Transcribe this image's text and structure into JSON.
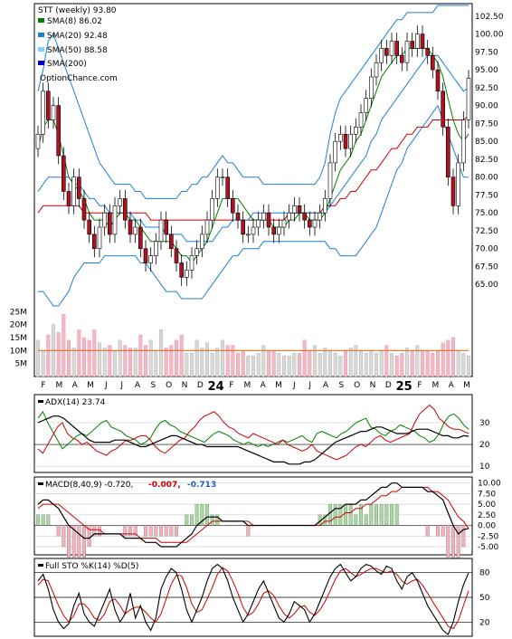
{
  "chart_data": {
    "type": "line",
    "title": "STT (weekly) 93.80",
    "legend": [
      {
        "label": "SMA(8) 86.02",
        "color": "#008000"
      },
      {
        "label": "SMA(20) 92.48",
        "color": "#1e7fd6"
      },
      {
        "label": "SMA(50) 88.58",
        "color": "#87cefa"
      },
      {
        "label": "SMA(200)",
        "color": "#0000cc"
      }
    ],
    "watermark": "OptionChance.com",
    "x_tick_labels": [
      "F",
      "M",
      "A",
      "M",
      "J",
      "J",
      "A",
      "S",
      "O",
      "N",
      "D",
      "24",
      "F",
      "M",
      "A",
      "M",
      "J",
      "J",
      "A",
      "S",
      "O",
      "N",
      "D",
      "25",
      "F",
      "M",
      "A",
      "M"
    ],
    "price_axis": {
      "ticks": [
        "102.50",
        "100.00",
        "97.50",
        "95.00",
        "92.50",
        "90.00",
        "87.50",
        "85.00",
        "82.50",
        "80.00",
        "77.50",
        "75.00",
        "72.50",
        "70.00",
        "67.50",
        "65.00"
      ],
      "ylim": [
        62.5,
        104
      ],
      "close": [
        86,
        92,
        88,
        90,
        83,
        78,
        76,
        80,
        77,
        74,
        72,
        70,
        73,
        75,
        72,
        76,
        77,
        74,
        72,
        73,
        70,
        68,
        69,
        71,
        74,
        72,
        70,
        68,
        66,
        67,
        69,
        70,
        72,
        74,
        77,
        80,
        80,
        77,
        75,
        74,
        72,
        72,
        73,
        74,
        75,
        73,
        72,
        73,
        74,
        75,
        76,
        75,
        74,
        73,
        74,
        75,
        77,
        82,
        85,
        86,
        84,
        86,
        87,
        89,
        91,
        94,
        96,
        98,
        97,
        99,
        97,
        96,
        99,
        98,
        100,
        98,
        97,
        95,
        92,
        87,
        80,
        76,
        82,
        88,
        93.8
      ],
      "sma8": [
        84,
        87,
        88,
        88,
        86,
        83,
        80,
        79,
        78,
        77,
        75,
        74,
        74,
        74,
        73,
        74,
        75,
        75,
        74,
        74,
        73,
        72,
        71,
        71,
        71,
        71,
        71,
        70,
        69,
        69,
        68,
        69,
        70,
        71,
        73,
        75,
        77,
        77,
        77,
        77,
        76,
        75,
        74,
        74,
        74,
        74,
        73,
        73,
        73,
        74,
        74,
        75,
        75,
        74,
        74,
        74,
        75,
        77,
        79,
        81,
        82,
        83,
        85,
        86,
        88,
        90,
        92,
        94,
        95,
        96,
        97,
        97,
        98,
        98,
        98,
        98,
        98,
        97,
        96,
        94,
        91,
        88,
        86,
        85,
        86.02
      ],
      "sma20": [
        78,
        79,
        80,
        80,
        80,
        80,
        80,
        79,
        79,
        78,
        77,
        77,
        76,
        76,
        75,
        75,
        75,
        75,
        75,
        74,
        74,
        73,
        73,
        73,
        73,
        72,
        72,
        72,
        72,
        71,
        71,
        71,
        71,
        71,
        71,
        72,
        73,
        73,
        74,
        74,
        74,
        74,
        75,
        75,
        75,
        75,
        75,
        75,
        75,
        75,
        75,
        75,
        75,
        75,
        75,
        75,
        75,
        76,
        77,
        78,
        79,
        80,
        81,
        82,
        83,
        85,
        86,
        88,
        89,
        90,
        91,
        92,
        93,
        94,
        95,
        96,
        97,
        97,
        97,
        96,
        95,
        94,
        93,
        92,
        92.48
      ],
      "sma50": [
        75,
        76,
        76,
        76,
        76,
        76,
        76,
        76,
        76,
        75,
        75,
        75,
        75,
        75,
        75,
        75,
        75,
        75,
        75,
        75,
        75,
        75,
        74,
        74,
        74,
        74,
        74,
        74,
        74,
        74,
        74,
        74,
        74,
        74,
        74,
        74,
        74,
        74,
        74,
        74,
        74,
        74,
        74,
        74,
        74,
        74,
        74,
        74,
        74,
        75,
        75,
        75,
        75,
        75,
        75,
        75,
        76,
        76,
        76,
        77,
        77,
        78,
        78,
        79,
        80,
        81,
        81,
        82,
        83,
        84,
        84,
        85,
        86,
        86,
        87,
        87,
        87,
        88,
        88,
        88,
        88,
        88,
        88,
        88,
        88.58
      ],
      "bb_upper": [
        92,
        95,
        99,
        100,
        98,
        96,
        94,
        92,
        90,
        88,
        86,
        84,
        82,
        81,
        80,
        79,
        79,
        79,
        79,
        78,
        78,
        77,
        77,
        77,
        77,
        77,
        77,
        77,
        78,
        78,
        79,
        79,
        80,
        80,
        81,
        82,
        83,
        82,
        82,
        81,
        80,
        80,
        80,
        80,
        79,
        79,
        79,
        79,
        79,
        79,
        79,
        79,
        79,
        79,
        79,
        80,
        82,
        86,
        89,
        91,
        92,
        93,
        94,
        95,
        96,
        97,
        98,
        99,
        100,
        101,
        102,
        102,
        103,
        103,
        103,
        103,
        103,
        103,
        104,
        104,
        104,
        104,
        104,
        104,
        104
      ],
      "bb_lower": [
        64,
        64,
        63,
        62,
        62,
        63,
        64,
        66,
        67,
        68,
        68,
        68,
        68,
        69,
        69,
        69,
        69,
        69,
        69,
        69,
        68,
        68,
        67,
        66,
        65,
        64,
        64,
        64,
        63,
        63,
        63,
        63,
        63,
        64,
        65,
        66,
        67,
        68,
        69,
        69,
        70,
        70,
        70,
        70,
        71,
        71,
        71,
        71,
        71,
        71,
        71,
        71,
        71,
        71,
        71,
        71,
        71,
        70,
        70,
        69,
        69,
        69,
        69,
        70,
        71,
        72,
        73,
        75,
        77,
        79,
        81,
        82,
        84,
        85,
        86,
        87,
        88,
        89,
        90,
        88,
        86,
        84,
        82,
        80,
        80
      ]
    },
    "volume_axis": {
      "ticks": [
        "25M",
        "20M",
        "15M",
        "10M",
        "5M"
      ],
      "ylim": [
        0,
        30
      ],
      "bars": [
        14,
        10,
        16,
        20,
        17,
        24,
        14,
        11,
        18,
        15,
        14,
        18,
        13,
        11,
        12,
        10,
        14,
        12,
        11,
        11,
        16,
        12,
        14,
        10,
        18,
        11,
        12,
        14,
        16,
        9,
        9,
        14,
        11,
        13,
        9,
        11,
        14,
        12,
        12,
        9,
        10,
        8,
        8,
        9,
        12,
        10,
        10,
        9,
        8,
        8,
        9,
        9,
        14,
        10,
        12,
        9,
        11,
        10,
        9,
        8,
        10,
        11,
        12,
        10,
        9,
        10,
        9,
        10,
        12,
        9,
        8,
        9,
        11,
        10,
        12,
        10,
        10,
        9,
        10,
        13,
        14,
        15,
        10,
        9,
        8
      ],
      "ma_value": 10
    },
    "adx_panel": {
      "label": "ADX(14) 23.74",
      "ticks": [
        "30",
        "20",
        "10"
      ],
      "ylim": [
        8,
        42
      ],
      "adx": [
        30,
        31,
        32,
        33,
        33,
        32,
        30,
        28,
        26,
        24,
        22,
        21,
        21,
        21,
        21,
        22,
        22,
        22,
        21,
        20,
        19,
        19,
        20,
        21,
        22,
        23,
        24,
        24,
        23,
        22,
        21,
        20,
        20,
        19,
        19,
        19,
        19,
        19,
        19,
        19,
        18,
        17,
        16,
        15,
        14,
        13,
        12,
        12,
        12,
        11,
        11,
        11,
        12,
        12,
        13,
        15,
        17,
        19,
        21,
        22,
        23,
        24,
        25,
        26,
        26,
        27,
        28,
        28,
        27,
        26,
        25,
        25,
        25,
        26,
        27,
        27,
        27,
        26,
        25,
        24,
        24,
        23,
        23,
        24,
        23.74
      ],
      "plus_di": [
        32,
        35,
        30,
        26,
        22,
        18,
        20,
        22,
        24,
        25,
        24,
        26,
        28,
        30,
        31,
        28,
        27,
        26,
        24,
        23,
        22,
        20,
        21,
        23,
        27,
        30,
        31,
        29,
        28,
        26,
        25,
        24,
        23,
        22,
        21,
        23,
        25,
        26,
        25,
        24,
        22,
        21,
        20,
        21,
        20,
        19,
        20,
        19,
        20,
        21,
        22,
        21,
        22,
        23,
        24,
        22,
        21,
        25,
        26,
        25,
        24,
        23,
        25,
        26,
        28,
        30,
        31,
        32,
        28,
        27,
        25,
        24,
        26,
        27,
        29,
        28,
        27,
        26,
        24,
        23,
        21,
        22,
        25,
        30,
        33,
        34,
        32,
        29,
        27
      ],
      "minus_di": [
        18,
        16,
        20,
        24,
        28,
        30,
        25,
        23,
        22,
        20,
        21,
        19,
        17,
        16,
        15,
        17,
        18,
        20,
        22,
        22,
        23,
        24,
        24,
        22,
        19,
        17,
        16,
        18,
        20,
        22,
        23,
        26,
        28,
        31,
        33,
        34,
        35,
        33,
        30,
        28,
        27,
        25,
        24,
        23,
        25,
        24,
        23,
        22,
        21,
        20,
        22,
        20,
        19,
        18,
        17,
        18,
        20,
        17,
        16,
        15,
        14,
        13,
        14,
        15,
        17,
        19,
        20,
        19,
        21,
        23,
        24,
        22,
        21,
        22,
        23,
        24,
        25,
        30,
        34,
        36,
        38,
        36,
        32,
        30,
        28,
        27,
        27,
        26,
        25
      ]
    },
    "macd_panel": {
      "label": "MACD(8,40,9) -0.720,",
      "value_1": "-0.007,",
      "value_2": "-0.713",
      "ticks": [
        "10.00",
        "7.50",
        "5.00",
        "2.50",
        "0.00",
        "-2.50",
        "-5.00"
      ],
      "ylim": [
        -6.5,
        11
      ],
      "macd": [
        5,
        6,
        6,
        5,
        4,
        2,
        0,
        -1,
        -2,
        -3,
        -3,
        -2,
        -2,
        -2,
        -2,
        -2,
        -2,
        -3,
        -3,
        -3,
        -3,
        -4,
        -4,
        -4,
        -5,
        -5,
        -5,
        -5,
        -4,
        -3,
        -2,
        0,
        1,
        2,
        2,
        2,
        1,
        1,
        1,
        1,
        1,
        0,
        0,
        0,
        0,
        0,
        0,
        0,
        0,
        0,
        0,
        0,
        0,
        0,
        0,
        1,
        2,
        3,
        4,
        4,
        5,
        5,
        5,
        6,
        6,
        7,
        8,
        9,
        9,
        10,
        10,
        9,
        9,
        9,
        9,
        9,
        8,
        8,
        7,
        6,
        3,
        0,
        -2,
        -1,
        -0.72
      ],
      "signal": [
        4,
        5,
        5,
        5,
        5,
        4,
        3,
        2,
        1,
        0,
        -1,
        -1,
        -1,
        -2,
        -2,
        -2,
        -2,
        -2,
        -2,
        -2,
        -3,
        -3,
        -3,
        -3,
        -4,
        -4,
        -4,
        -4,
        -4,
        -4,
        -3,
        -2,
        -1,
        0,
        1,
        1,
        1,
        1,
        1,
        1,
        1,
        1,
        0,
        0,
        0,
        0,
        0,
        0,
        0,
        0,
        0,
        0,
        0,
        0,
        0,
        0,
        1,
        1,
        2,
        2,
        3,
        3,
        4,
        4,
        5,
        5,
        6,
        7,
        7,
        8,
        8,
        9,
        9,
        9,
        9,
        9,
        9,
        8,
        8,
        7,
        6,
        4,
        2,
        1,
        -0.71
      ]
    },
    "sto_panel": {
      "label": "Full STO %K(14) %D(5)",
      "ticks": [
        "80",
        "50",
        "20"
      ],
      "ylim": [
        5,
        95
      ],
      "k": [
        70,
        78,
        60,
        35,
        20,
        12,
        18,
        40,
        55,
        30,
        20,
        15,
        30,
        45,
        60,
        35,
        20,
        30,
        55,
        25,
        40,
        20,
        10,
        25,
        60,
        75,
        85,
        80,
        60,
        35,
        20,
        35,
        50,
        70,
        85,
        90,
        85,
        70,
        50,
        35,
        20,
        30,
        45,
        60,
        70,
        55,
        40,
        25,
        20,
        30,
        45,
        40,
        35,
        20,
        30,
        45,
        60,
        75,
        85,
        90,
        80,
        70,
        75,
        85,
        90,
        88,
        82,
        78,
        88,
        85,
        70,
        60,
        75,
        80,
        70,
        55,
        40,
        30,
        20,
        10,
        5,
        20,
        45,
        65,
        80
      ],
      "d": [
        65,
        72,
        70,
        55,
        40,
        28,
        20,
        28,
        42,
        42,
        35,
        25,
        22,
        30,
        45,
        48,
        40,
        30,
        35,
        38,
        38,
        32,
        25,
        20,
        30,
        48,
        66,
        77,
        76,
        62,
        42,
        32,
        35,
        48,
        62,
        78,
        86,
        82,
        70,
        55,
        38,
        28,
        32,
        42,
        55,
        58,
        52,
        40,
        30,
        25,
        30,
        38,
        40,
        32,
        28,
        35,
        45,
        58,
        72,
        82,
        85,
        80,
        75,
        78,
        82,
        85,
        85,
        82,
        80,
        82,
        78,
        70,
        66,
        70,
        72,
        65,
        55,
        45,
        35,
        25,
        15,
        12,
        22,
        40,
        58
      ]
    }
  }
}
